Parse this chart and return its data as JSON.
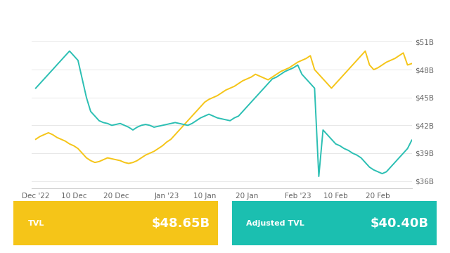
{
  "legend_labels": [
    "TVL",
    "Adjusted TVL"
  ],
  "legend_colors": [
    "#F5C518",
    "#2BBFB3"
  ],
  "x_tick_labels": [
    "Dec '22",
    "10 Dec",
    "20 Dec",
    "Jan '23",
    "10 Jan",
    "20 Jan",
    "Feb '23",
    "10 Feb",
    "20 Feb"
  ],
  "y_tick_labels": [
    "$36B",
    "$39B",
    "$42B",
    "$45B",
    "$48B",
    "$51B"
  ],
  "y_tick_values": [
    36,
    39,
    42,
    45,
    48,
    51
  ],
  "ylim": [
    35.2,
    52.5
  ],
  "bg_color": "#ffffff",
  "grid_color": "#e8e8e8",
  "tvl_color": "#F5C518",
  "adj_color": "#2BBFB3",
  "box_tvl_color": "#F5C518",
  "box_adj_color": "#1BBFB0",
  "tvl_value": "$48.65B",
  "adj_value": "$40.40B",
  "xtick_positions": [
    0,
    9,
    19,
    31,
    40,
    50,
    62,
    71,
    81
  ],
  "n": 90,
  "tvl_data": [
    40.5,
    40.8,
    41.0,
    41.2,
    41.0,
    40.7,
    40.5,
    40.3,
    40.0,
    39.8,
    39.5,
    39.0,
    38.5,
    38.2,
    38.0,
    38.1,
    38.3,
    38.5,
    38.4,
    38.3,
    38.2,
    38.0,
    37.9,
    38.0,
    38.2,
    38.5,
    38.8,
    39.0,
    39.2,
    39.5,
    39.8,
    40.2,
    40.5,
    41.0,
    41.5,
    42.0,
    42.5,
    43.0,
    43.5,
    44.0,
    44.5,
    44.8,
    45.0,
    45.2,
    45.5,
    45.8,
    46.0,
    46.2,
    46.5,
    46.8,
    47.0,
    47.2,
    47.5,
    47.3,
    47.1,
    46.9,
    47.2,
    47.5,
    47.8,
    48.0,
    48.2,
    48.5,
    48.8,
    49.0,
    49.2,
    49.5,
    48.0,
    47.5,
    47.0,
    46.5,
    46.0,
    46.5,
    47.0,
    47.5,
    48.0,
    48.5,
    49.0,
    49.5,
    50.0,
    48.5,
    48.0,
    48.2,
    48.5,
    48.8,
    49.0,
    49.2,
    49.5,
    49.8,
    48.5,
    48.65
  ],
  "adj_data": [
    46.0,
    46.5,
    47.0,
    47.5,
    48.0,
    48.5,
    49.0,
    49.5,
    50.0,
    49.5,
    49.0,
    47.0,
    45.0,
    43.5,
    43.0,
    42.5,
    42.3,
    42.2,
    42.0,
    42.1,
    42.2,
    42.0,
    41.8,
    41.5,
    41.8,
    42.0,
    42.1,
    42.0,
    41.8,
    41.9,
    42.0,
    42.1,
    42.2,
    42.3,
    42.2,
    42.1,
    42.0,
    42.2,
    42.5,
    42.8,
    43.0,
    43.2,
    43.0,
    42.8,
    42.7,
    42.6,
    42.5,
    42.8,
    43.0,
    43.5,
    44.0,
    44.5,
    45.0,
    45.5,
    46.0,
    46.5,
    47.0,
    47.2,
    47.5,
    47.8,
    48.0,
    48.2,
    48.5,
    47.5,
    47.0,
    46.5,
    46.0,
    36.5,
    41.5,
    41.0,
    40.5,
    40.0,
    39.8,
    39.5,
    39.3,
    39.0,
    38.8,
    38.5,
    38.0,
    37.5,
    37.2,
    37.0,
    36.8,
    37.0,
    37.5,
    38.0,
    38.5,
    39.0,
    39.5,
    40.4
  ]
}
